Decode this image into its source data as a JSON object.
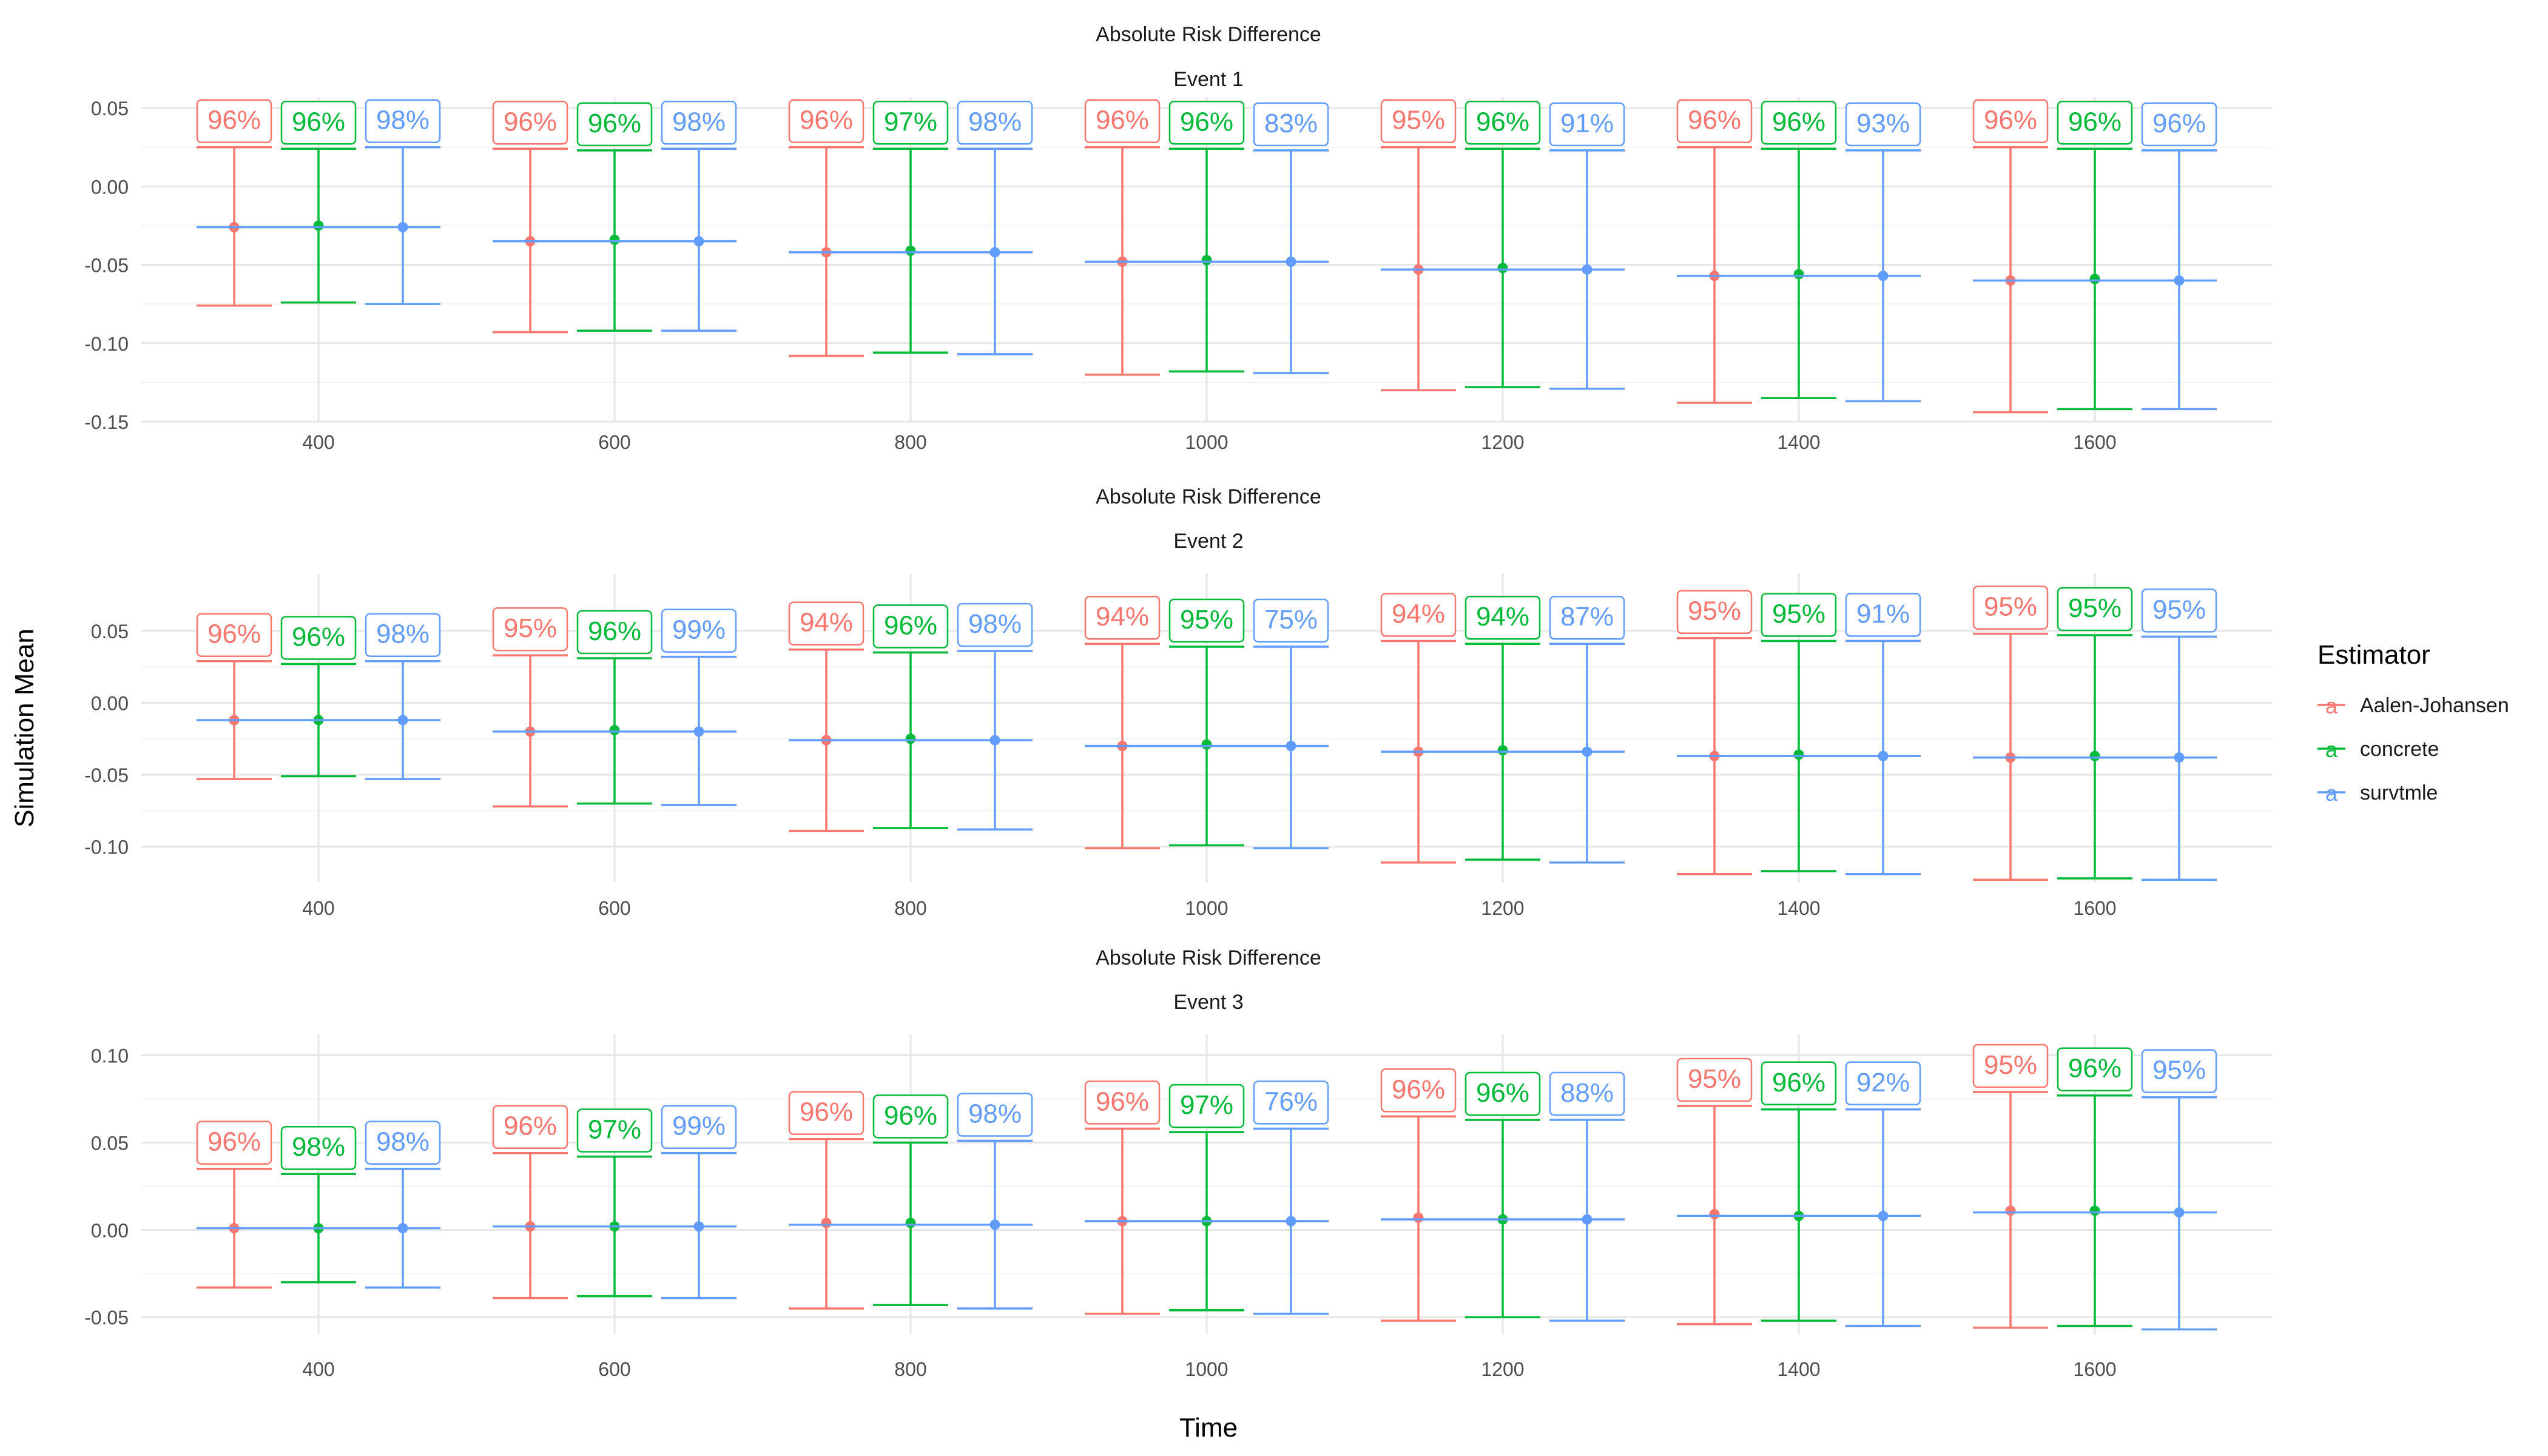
{
  "ylabel": "Simulation Mean",
  "xlabel": "Time",
  "legend": {
    "title": "Estimator",
    "position": "right",
    "glyph": "a",
    "items": [
      {
        "name": "Aalen-Johansen",
        "color": "#F8766D"
      },
      {
        "name": "concrete",
        "color": "#00BA38"
      },
      {
        "name": "survtmle",
        "color": "#619CFF"
      }
    ]
  },
  "chart_data": [
    {
      "type": "errorbar",
      "title": "Absolute Risk Difference",
      "subtitle": "Event 1",
      "categories": [
        "400",
        "600",
        "800",
        "1000",
        "1200",
        "1400",
        "1600"
      ],
      "ylim": [
        -0.15,
        0.057
      ],
      "yticks": [
        0.05,
        0.0,
        -0.05,
        -0.1,
        -0.15
      ],
      "ytick_labels": [
        "0.05",
        "0.00",
        "-0.05",
        "-0.10",
        "-0.15"
      ],
      "grid": true,
      "series": [
        {
          "name": "Aalen-Johansen",
          "mean": [
            -0.026,
            -0.035,
            -0.042,
            -0.048,
            -0.053,
            -0.057,
            -0.06
          ],
          "lower": [
            -0.076,
            -0.093,
            -0.108,
            -0.12,
            -0.13,
            -0.138,
            -0.144
          ],
          "upper": [
            0.025,
            0.024,
            0.025,
            0.025,
            0.025,
            0.025,
            0.025
          ],
          "coverage": [
            "96%",
            "96%",
            "96%",
            "96%",
            "95%",
            "96%",
            "96%"
          ]
        },
        {
          "name": "concrete",
          "mean": [
            -0.025,
            -0.034,
            -0.041,
            -0.047,
            -0.052,
            -0.056,
            -0.059
          ],
          "lower": [
            -0.074,
            -0.092,
            -0.106,
            -0.118,
            -0.128,
            -0.135,
            -0.142
          ],
          "upper": [
            0.024,
            0.023,
            0.024,
            0.024,
            0.024,
            0.024,
            0.024
          ],
          "coverage": [
            "96%",
            "96%",
            "97%",
            "96%",
            "96%",
            "96%",
            "96%"
          ]
        },
        {
          "name": "survtmle",
          "mean": [
            -0.026,
            -0.035,
            -0.042,
            -0.048,
            -0.053,
            -0.057,
            -0.06
          ],
          "lower": [
            -0.075,
            -0.092,
            -0.107,
            -0.119,
            -0.129,
            -0.137,
            -0.142
          ],
          "upper": [
            0.025,
            0.024,
            0.024,
            0.023,
            0.023,
            0.023,
            0.023
          ],
          "coverage": [
            "98%",
            "98%",
            "98%",
            "83%",
            "91%",
            "93%",
            "96%"
          ]
        }
      ]
    },
    {
      "type": "errorbar",
      "title": "Absolute Risk Difference",
      "subtitle": "Event 2",
      "categories": [
        "400",
        "600",
        "800",
        "1000",
        "1200",
        "1400",
        "1600"
      ],
      "ylim": [
        -0.125,
        0.09
      ],
      "yticks": [
        0.05,
        0.0,
        -0.05,
        -0.1
      ],
      "ytick_labels": [
        "0.05",
        "0.00",
        "-0.05",
        "-0.10"
      ],
      "grid": true,
      "series": [
        {
          "name": "Aalen-Johansen",
          "mean": [
            -0.012,
            -0.02,
            -0.026,
            -0.03,
            -0.034,
            -0.037,
            -0.038
          ],
          "lower": [
            -0.053,
            -0.072,
            -0.089,
            -0.101,
            -0.111,
            -0.119,
            -0.123
          ],
          "upper": [
            0.029,
            0.033,
            0.037,
            0.041,
            0.043,
            0.045,
            0.048
          ],
          "coverage": [
            "96%",
            "95%",
            "94%",
            "94%",
            "94%",
            "95%",
            "95%"
          ]
        },
        {
          "name": "concrete",
          "mean": [
            -0.012,
            -0.019,
            -0.025,
            -0.029,
            -0.033,
            -0.036,
            -0.037
          ],
          "lower": [
            -0.051,
            -0.07,
            -0.087,
            -0.099,
            -0.109,
            -0.117,
            -0.122
          ],
          "upper": [
            0.027,
            0.031,
            0.035,
            0.039,
            0.041,
            0.043,
            0.047
          ],
          "coverage": [
            "96%",
            "96%",
            "96%",
            "95%",
            "94%",
            "95%",
            "95%"
          ]
        },
        {
          "name": "survtmle",
          "mean": [
            -0.012,
            -0.02,
            -0.026,
            -0.03,
            -0.034,
            -0.037,
            -0.038
          ],
          "lower": [
            -0.053,
            -0.071,
            -0.088,
            -0.101,
            -0.111,
            -0.119,
            -0.123
          ],
          "upper": [
            0.029,
            0.032,
            0.036,
            0.039,
            0.041,
            0.043,
            0.046
          ],
          "coverage": [
            "98%",
            "99%",
            "98%",
            "75%",
            "87%",
            "91%",
            "95%"
          ]
        }
      ]
    },
    {
      "type": "errorbar",
      "title": "Absolute Risk Difference",
      "subtitle": "Event 3",
      "categories": [
        "400",
        "600",
        "800",
        "1000",
        "1200",
        "1400",
        "1600"
      ],
      "ylim": [
        -0.06,
        0.112
      ],
      "yticks": [
        0.1,
        0.05,
        0.0,
        -0.05
      ],
      "ytick_labels": [
        "0.10",
        "0.05",
        "0.00",
        "-0.05"
      ],
      "grid": true,
      "series": [
        {
          "name": "Aalen-Johansen",
          "mean": [
            0.001,
            0.002,
            0.004,
            0.005,
            0.007,
            0.009,
            0.011
          ],
          "lower": [
            -0.033,
            -0.039,
            -0.045,
            -0.048,
            -0.052,
            -0.054,
            -0.056
          ],
          "upper": [
            0.035,
            0.044,
            0.052,
            0.058,
            0.065,
            0.071,
            0.079
          ],
          "coverage": [
            "96%",
            "96%",
            "96%",
            "96%",
            "96%",
            "95%",
            "95%"
          ]
        },
        {
          "name": "concrete",
          "mean": [
            0.001,
            0.002,
            0.004,
            0.005,
            0.006,
            0.008,
            0.011
          ],
          "lower": [
            -0.03,
            -0.038,
            -0.043,
            -0.046,
            -0.05,
            -0.052,
            -0.055
          ],
          "upper": [
            0.032,
            0.042,
            0.05,
            0.056,
            0.063,
            0.069,
            0.077
          ],
          "coverage": [
            "98%",
            "97%",
            "96%",
            "97%",
            "96%",
            "96%",
            "96%"
          ]
        },
        {
          "name": "survtmle",
          "mean": [
            0.001,
            0.002,
            0.003,
            0.005,
            0.006,
            0.008,
            0.01
          ],
          "lower": [
            -0.033,
            -0.039,
            -0.045,
            -0.048,
            -0.052,
            -0.055,
            -0.057
          ],
          "upper": [
            0.035,
            0.044,
            0.051,
            0.058,
            0.063,
            0.069,
            0.076
          ],
          "coverage": [
            "98%",
            "99%",
            "98%",
            "76%",
            "88%",
            "92%",
            "95%"
          ]
        }
      ]
    }
  ]
}
